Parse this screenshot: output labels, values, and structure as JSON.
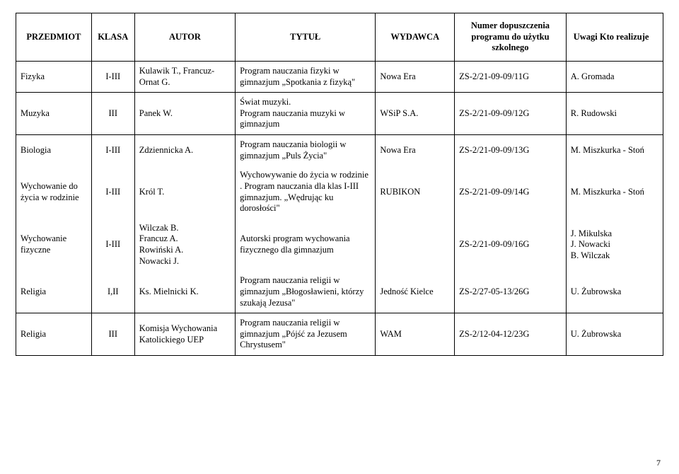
{
  "headers": {
    "col0": "PRZEDMIOT",
    "col1": "KLASA",
    "col2": "AUTOR",
    "col3": "TYTUŁ",
    "col4": "WYDAWCA",
    "col5": "Numer dopuszczenia programu do użytku szkolnego",
    "col6": "Uwagi\nKto realizuje"
  },
  "rows": [
    {
      "przedmiot": "Fizyka",
      "klasa": "I-III",
      "autor": "Kulawik T., Francuz-Ornat G.",
      "tytul": "Program nauczania fizyki w gimnazjum „Spotkania z fizyką\"",
      "wydawca": "Nowa Era",
      "numer": "ZS-2/21-09-09/11G",
      "uwagi": "A. Gromada",
      "groupLast": true
    },
    {
      "przedmiot": "Muzyka",
      "klasa": "III",
      "autor": "Panek W.",
      "tytul": "Świat muzyki.\nProgram nauczania muzyki w gimnazjum",
      "wydawca": "WSiP S.A.",
      "numer": "ZS-2/21-09-09/12G",
      "uwagi": "R. Rudowski",
      "groupLast": true
    },
    {
      "przedmiot": "Biologia",
      "klasa": "I-III",
      "autor": "Zdziennicka A.",
      "tytul": "Program nauczania biologii w gimnazjum „Puls Życia\"",
      "wydawca": "Nowa Era",
      "numer": "ZS-2/21-09-09/13G",
      "uwagi": "M. Miszkurka - Stoń",
      "groupLast": false
    },
    {
      "przedmiot": "Wychowanie do życia w rodzinie",
      "klasa": "I-III",
      "autor": "Król T.",
      "tytul": "Wychowywanie do życia w rodzinie . Program nauczania dla klas I-III gimnazjum. „Wędrując ku dorosłości\"",
      "wydawca": "RUBIKON",
      "numer": "ZS-2/21-09-09/14G",
      "uwagi": "M. Miszkurka - Stoń",
      "groupLast": false
    },
    {
      "przedmiot": "Wychowanie fizyczne",
      "klasa": "I-III",
      "autor": "Wilczak B.\nFrancuz A.\nRowiński A.\nNowacki J.",
      "tytul": "Autorski program wychowania fizycznego dla gimnazjum",
      "wydawca": "",
      "numer": "ZS-2/21-09-09/16G",
      "uwagi": "J. Mikulska\nJ. Nowacki\nB. Wilczak",
      "groupLast": false
    },
    {
      "przedmiot": "Religia",
      "klasa": "I,II",
      "autor": "Ks. Mielnicki K.",
      "tytul": "Program nauczania religii w gimnazjum „Błogosławieni, którzy szukają Jezusa\"",
      "wydawca": "Jedność Kielce",
      "numer": "ZS-2/27-05-13/26G",
      "uwagi": "U. Żubrowska",
      "groupLast": true
    },
    {
      "przedmiot": "Religia",
      "klasa": "III",
      "autor": "Komisja Wychowania Katolickiego UEP",
      "tytul": "Program nauczania religii w gimnazjum „Pójść za Jezusem Chrystusem\"",
      "wydawca": "WAM",
      "numer": "ZS-2/12-04-12/23G",
      "uwagi": "U. Żubrowska",
      "groupLast": true
    }
  ],
  "pageNumber": "7"
}
